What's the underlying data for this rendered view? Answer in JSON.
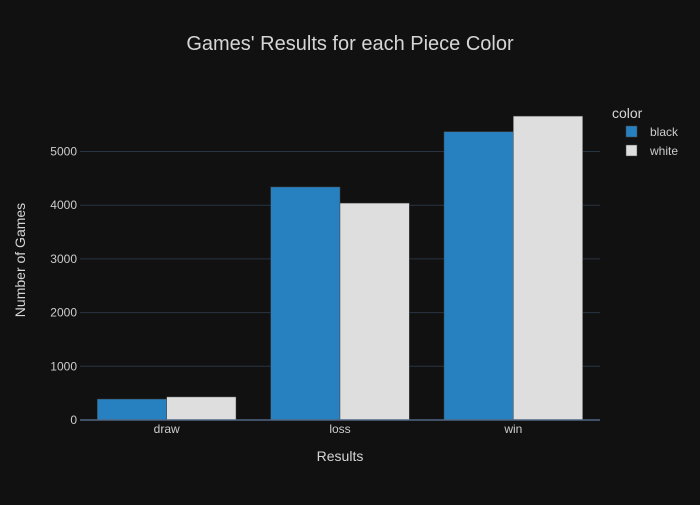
{
  "chart_data": {
    "type": "bar",
    "title": "Games' Results for each Piece Color",
    "xlabel": "Results",
    "ylabel": "Number of Games",
    "categories": [
      "draw",
      "loss",
      "win"
    ],
    "series": [
      {
        "name": "black",
        "color": "#2780BF",
        "values": [
          390,
          4340,
          5370
        ]
      },
      {
        "name": "white",
        "color": "#DEDEDE",
        "values": [
          430,
          4040,
          5660
        ]
      }
    ],
    "ylim": [
      0,
      5960
    ],
    "yticks": [
      0,
      1000,
      2000,
      3000,
      4000,
      5000
    ],
    "grid": true,
    "legend": {
      "title": "color",
      "placement": "top-right"
    },
    "colors": {
      "background": "#111111",
      "grid": "#283442",
      "text": "#f2f5fa",
      "tick_text": "#cccccc"
    }
  }
}
